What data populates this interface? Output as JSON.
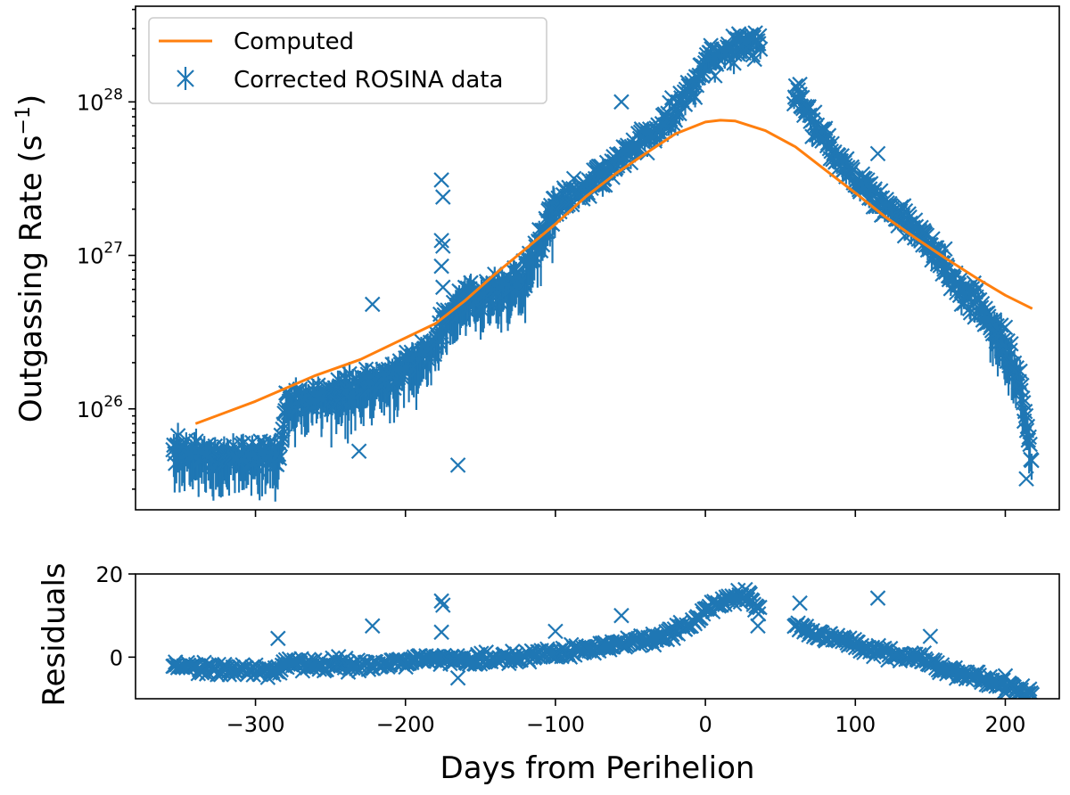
{
  "chart_data": [
    {
      "type": "scatter",
      "panel": "main",
      "ylabel_main": "Outgassing Rate (s",
      "ylabel_sup": "−1",
      "ylabel_close": ")",
      "yscale": "log",
      "ylim": [
        2.2e+25,
        4.2e+28
      ],
      "xlim": [
        -380,
        236
      ],
      "xticks": [
        -300,
        -200,
        -100,
        0,
        100,
        200
      ],
      "yticks": [
        {
          "value": 1e+26,
          "base": "10",
          "exp": "26"
        },
        {
          "value": 1e+27,
          "base": "10",
          "exp": "27"
        },
        {
          "value": 1e+28,
          "base": "10",
          "exp": "28"
        }
      ],
      "legend": {
        "position": "top-left",
        "entries": [
          {
            "label": "Computed",
            "kind": "line",
            "color": "#ff7f0e"
          },
          {
            "label": "Corrected ROSINA data",
            "kind": "errorbar-x",
            "color": "#1f77b4"
          }
        ]
      },
      "series": [
        {
          "name": "Computed",
          "color": "#ff7f0e",
          "x": [
            -340,
            -300,
            -260,
            -230,
            -200,
            -180,
            -160,
            -140,
            -120,
            -100,
            -80,
            -60,
            -40,
            -20,
            0,
            10,
            20,
            40,
            60,
            80,
            100,
            120,
            140,
            160,
            180,
            200,
            218
          ],
          "y": [
            8e+25,
            1.12e+26,
            1.65e+26,
            2.1e+26,
            2.9e+26,
            3.6e+26,
            5.1e+26,
            7.6e+26,
            1.1e+27,
            1.6e+27,
            2.4e+27,
            3.4e+27,
            4.6e+27,
            6.2e+27,
            7.4e+27,
            7.6e+27,
            7.5e+27,
            6.5e+27,
            5.1e+27,
            3.6e+27,
            2.55e+27,
            1.78e+27,
            1.3e+27,
            9.6e+26,
            7.2e+26,
            5.5e+26,
            4.5e+26
          ]
        },
        {
          "name": "Corrected ROSINA data",
          "color": "#1f77b4",
          "trend_x": [
            -355,
            -340,
            -320,
            -300,
            -285,
            -280,
            -260,
            -240,
            -220,
            -200,
            -180,
            -175,
            -160,
            -140,
            -120,
            -100,
            -80,
            -60,
            -40,
            -20,
            -10,
            0,
            10,
            20,
            30,
            35,
            60,
            70,
            80,
            100,
            120,
            140,
            160,
            170,
            180,
            190,
            200,
            210,
            218
          ],
          "trend_y": [
            5.5e+25,
            5.2e+25,
            5e+25,
            5e+25,
            4.6e+25,
            1.1e+26,
            1.2e+26,
            1.25e+26,
            1.5e+26,
            1.9e+26,
            2.6e+26,
            3.8e+26,
            5.2e+26,
            6e+26,
            7.5e+26,
            2.2e+27,
            2.8e+27,
            4e+27,
            5.8e+27,
            8.5e+27,
            1.2e+28,
            1.85e+28,
            2e+28,
            2.3e+28,
            2.5e+28,
            2.3e+28,
            1.1e+28,
            7.5e+27,
            5.5e+27,
            3.2e+27,
            2.1e+27,
            1.5e+27,
            8.5e+26,
            6e+26,
            5e+26,
            3.8e+26,
            2.5e+26,
            1.5e+26,
            4.5e+25
          ],
          "outliers": [
            {
              "x": -176,
              "y": 3.1e+27
            },
            {
              "x": -175,
              "y": 2.4e+27
            },
            {
              "x": -176,
              "y": 1.25e+27
            },
            {
              "x": -175,
              "y": 1.15e+27
            },
            {
              "x": -176,
              "y": 8.5e+26
            },
            {
              "x": -175,
              "y": 6.2e+26
            },
            {
              "x": -222,
              "y": 4.8e+26
            },
            {
              "x": -165,
              "y": 4.3e+25
            },
            {
              "x": -231,
              "y": 5.3e+25
            },
            {
              "x": 115,
              "y": 4.6e+27
            },
            {
              "x": 63,
              "y": 1.3e+28
            },
            {
              "x": -56,
              "y": 1e+28
            },
            {
              "x": 200,
              "y": 3.4e+26
            },
            {
              "x": 214,
              "y": 3.5e+25
            }
          ]
        }
      ]
    },
    {
      "type": "scatter",
      "panel": "residuals",
      "ylabel": "Residuals",
      "xlabel": "Days from Perihelion",
      "ylim": [
        -10,
        20
      ],
      "xlim": [
        -380,
        236
      ],
      "yticks": [
        0,
        20
      ],
      "xticks": [
        -300,
        -200,
        -100,
        0,
        100,
        200
      ],
      "xticklabels": [
        "−300",
        "−200",
        "−100",
        "0",
        "100",
        "200"
      ],
      "series": [
        {
          "name": "Residuals",
          "color": "#1f77b4",
          "trend_x": [
            -355,
            -320,
            -285,
            -280,
            -260,
            -230,
            -200,
            -180,
            -160,
            -140,
            -120,
            -100,
            -80,
            -60,
            -40,
            -20,
            -5,
            0,
            10,
            20,
            30,
            35,
            60,
            80,
            100,
            120,
            140,
            160,
            180,
            200,
            218
          ],
          "trend_y": [
            -2,
            -3,
            -3.5,
            -1,
            -2,
            -2,
            -1,
            0,
            -1,
            0,
            0,
            1,
            2,
            3,
            4,
            6,
            9,
            12,
            13,
            14,
            15,
            11,
            8,
            5,
            3,
            1,
            0,
            -3,
            -5,
            -7,
            -9
          ],
          "outliers": [
            {
              "x": -176,
              "y": 13.5
            },
            {
              "x": -175,
              "y": 12.5
            },
            {
              "x": -176,
              "y": 6
            },
            {
              "x": -222,
              "y": 7.5
            },
            {
              "x": -165,
              "y": -5
            },
            {
              "x": 115,
              "y": 14.2
            },
            {
              "x": 63,
              "y": 13
            },
            {
              "x": -56,
              "y": 10
            },
            {
              "x": -100,
              "y": 6.2
            },
            {
              "x": 150,
              "y": 5
            },
            {
              "x": -285,
              "y": 4.5
            },
            {
              "x": 35,
              "y": 7.5
            },
            {
              "x": 200,
              "y": -4.5
            }
          ]
        }
      ]
    }
  ]
}
